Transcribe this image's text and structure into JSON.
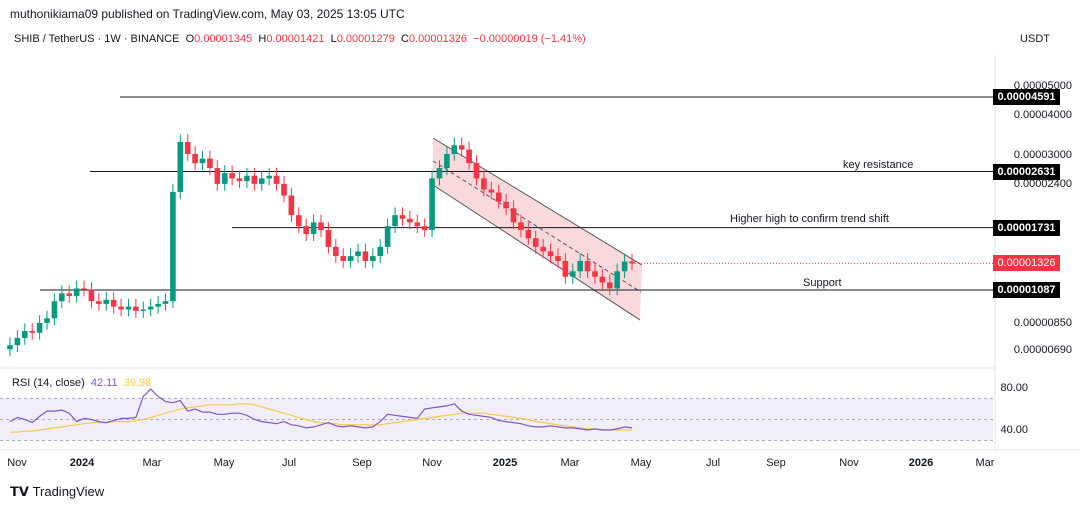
{
  "header": {
    "published": "muthonikiama09 published on TradingView.com, May 03, 2025 13:05 UTC",
    "symbol": "SHIB / TetherUS · 1W · BINANCE",
    "o_label": "O",
    "o": "0.00001345",
    "h_label": "H",
    "h": "0.00001421",
    "l_label": "L",
    "l": "0.00001279",
    "c_label": "C",
    "c": "0.00001326",
    "change": "−0.00000019 (−1.41%)",
    "quote_currency": "USDT"
  },
  "price_axis": [
    "0.00005000",
    "0.00004000",
    "0.00003000",
    "0.00002400",
    "0.00000850",
    "0.00000690"
  ],
  "price_tags": {
    "l4591": "0.00004591",
    "l2631": "0.00002631",
    "l1731": "0.00001731",
    "last": "0.00001326",
    "l1087": "0.00001087"
  },
  "annotations": {
    "resistance": "key resistance",
    "higher_high": "Higher high to confirm trend shift",
    "support": "Support"
  },
  "rsi": {
    "label": "RSI (14, close)",
    "value": "42.11",
    "ma_value": "39.98",
    "axis": [
      "80.00",
      "40.00"
    ]
  },
  "time_axis": [
    {
      "t": "Nov",
      "b": false
    },
    {
      "t": "2024",
      "b": true
    },
    {
      "t": "Mar",
      "b": false
    },
    {
      "t": "May",
      "b": false
    },
    {
      "t": "Jul",
      "b": false
    },
    {
      "t": "Sep",
      "b": false
    },
    {
      "t": "Nov",
      "b": false
    },
    {
      "t": "2025",
      "b": true
    },
    {
      "t": "Mar",
      "b": false
    },
    {
      "t": "May",
      "b": false
    },
    {
      "t": "Jul",
      "b": false
    },
    {
      "t": "Sep",
      "b": false
    },
    {
      "t": "Nov",
      "b": false
    },
    {
      "t": "2026",
      "b": true
    },
    {
      "t": "Mar",
      "b": false
    }
  ],
  "footer": {
    "brand": "TradingView"
  },
  "colors": {
    "up": "#089981",
    "down": "#f23645",
    "rsi": "#7e57c2",
    "rsi_ma": "#f7c948",
    "channel": "#f8d0d3"
  },
  "chart_data": {
    "type": "candlestick",
    "title": "SHIB / TetherUS · 1W · BINANCE",
    "scale": "log",
    "unit": "1e-8 USDT",
    "closes": [
      720,
      760,
      800,
      790,
      850,
      880,
      1000,
      1060,
      1040,
      1100,
      1090,
      1000,
      980,
      1010,
      960,
      940,
      960,
      930,
      940,
      960,
      980,
      1000,
      2260,
      3280,
      3000,
      2800,
      2900,
      2700,
      2400,
      2600,
      2500,
      2450,
      2550,
      2400,
      2500,
      2550,
      2400,
      2200,
      1900,
      1750,
      1650,
      1800,
      1700,
      1500,
      1400,
      1350,
      1400,
      1450,
      1350,
      1400,
      1500,
      1750,
      1900,
      1850,
      1800,
      1750,
      1700,
      2500,
      2700,
      3000,
      3200,
      3100,
      2800,
      2500,
      2300,
      2250,
      2100,
      2000,
      1800,
      1700,
      1600,
      1500,
      1450,
      1400,
      1350,
      1200,
      1250,
      1350,
      1250,
      1200,
      1150,
      1100,
      1250,
      1345,
      1326
    ],
    "levels": [
      4591,
      2631,
      1731,
      1087
    ],
    "rsi": [
      48,
      52,
      50,
      47,
      53,
      58,
      58,
      59,
      56,
      48,
      51,
      50,
      48,
      47,
      49,
      51,
      51,
      52,
      72,
      79,
      72,
      67,
      66,
      68,
      58,
      60,
      57,
      57,
      55,
      55,
      56,
      56,
      54,
      50,
      48,
      47,
      46,
      48,
      45,
      44,
      42,
      43,
      45,
      47,
      44,
      43,
      44,
      43,
      42,
      43,
      48,
      55,
      54,
      53,
      52,
      51,
      60,
      61,
      62,
      63,
      65,
      58,
      55,
      54,
      53,
      52,
      49,
      48,
      47,
      46,
      44,
      43,
      43,
      44,
      43,
      42,
      42,
      41,
      40,
      41,
      40,
      40,
      41,
      43,
      42
    ],
    "rsi_ma": [
      38,
      38,
      39,
      39,
      40,
      41,
      42,
      43,
      44,
      45,
      46,
      47,
      47,
      47,
      48,
      48,
      48,
      49,
      50,
      52,
      54,
      56,
      58,
      60,
      61,
      62,
      63,
      64,
      64,
      64,
      64,
      65,
      65,
      64,
      62,
      60,
      58,
      56,
      54,
      52,
      50,
      48,
      47,
      46,
      46,
      45,
      45,
      45,
      45,
      45,
      45,
      46,
      47,
      48,
      49,
      50,
      51,
      52,
      53,
      54,
      55,
      56,
      56,
      56,
      56,
      55,
      54,
      53,
      52,
      51,
      50,
      48,
      47,
      46,
      45,
      44,
      43,
      42,
      41,
      41,
      40,
      40,
      40,
      40,
      40
    ],
    "rsi_ylim": [
      20,
      100
    ]
  }
}
